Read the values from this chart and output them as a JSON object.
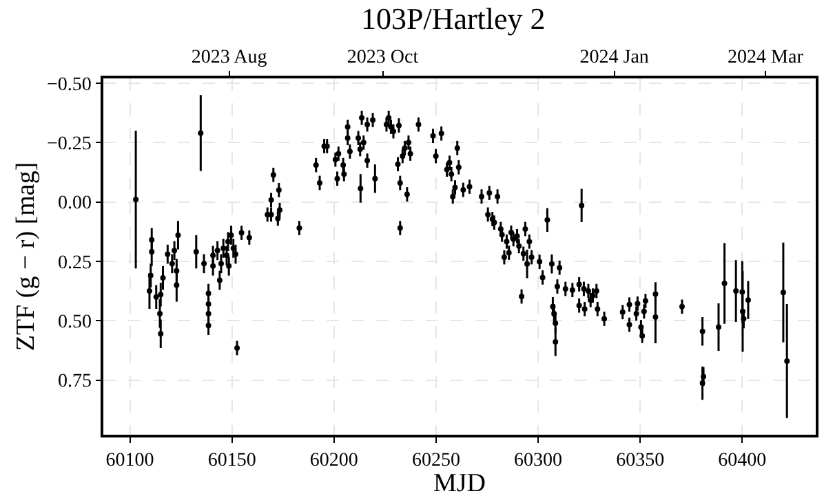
{
  "chart_data": {
    "type": "scatter",
    "title": "103P/Hartley 2",
    "xlabel": "MJD",
    "ylabel": "ZTF (g − r) [mag]",
    "xlim": [
      60087,
      60436
    ],
    "xticks": [
      60100,
      60150,
      60200,
      60250,
      60300,
      60350,
      60400
    ],
    "x2lim": [
      "2023-06-12",
      "2024-03-21"
    ],
    "x2ticks": [
      {
        "value": "2023-08",
        "label": "2023 Aug"
      },
      {
        "value": "2023-10",
        "label": "2023 Oct"
      },
      {
        "value": "2024-01",
        "label": "2024 Jan"
      },
      {
        "value": "2024-03",
        "label": "2024 Mar"
      }
    ],
    "ylim": [
      0.98,
      -0.52
    ],
    "yticks": [
      {
        "value": -0.5,
        "label": "−0.50"
      },
      {
        "value": -0.25,
        "label": "−0.25"
      },
      {
        "value": 0,
        "label": "0.00"
      },
      {
        "value": 0.25,
        "label": "0.25"
      },
      {
        "value": 0.5,
        "label": "0.50"
      },
      {
        "value": 0.75,
        "label": "0.75"
      }
    ],
    "grid": true,
    "marker": "circle",
    "series": [
      {
        "color": "#000000",
        "x": [
          60102.9,
          60109.6,
          60110.2,
          60110.7,
          60110.7,
          60112.9,
          60114.7,
          60115.1,
          60115.1,
          60116.2,
          60118.5,
          60120.7,
          60121.8,
          60122.9,
          60122.9,
          60123.6,
          60134.7,
          60132.5,
          60136.3,
          60138.5,
          60138.5,
          60138.5,
          60138.5,
          60140.7,
          60140.7,
          60142.9,
          60144.0,
          60144.7,
          60145.8,
          60147.4,
          60148.1,
          60148.5,
          60149.6,
          60150.7,
          60151.8,
          60152.5,
          60154.7,
          60158.5,
          60167.4,
          60169.2,
          60169.2,
          60170.3,
          60172.5,
          60173.0,
          60173.4,
          60183.0,
          60191.2,
          60193.0,
          60195.2,
          60196.6,
          60200.7,
          60202.2,
          60201.6,
          60204.5,
          60204.9,
          60206.7,
          60206.7,
          60207.8,
          60211.9,
          60212.8,
          60213.0,
          60213.6,
          60214.5,
          60216.3,
          60216.3,
          60219.0,
          60220.1,
          60225.7,
          60226.8,
          60227.9,
          60229.1,
          60231.3,
          60231.8,
          60232.4,
          60232.4,
          60233.6,
          60234.7,
          60235.8,
          60236.5,
          60237.4,
          60241.4,
          60248.5,
          60249.9,
          60252.6,
          60255.3,
          60256.6,
          60257.5,
          60258.2,
          60259.3,
          60260.4,
          60261.1,
          60263.3,
          60266.4,
          60272.3,
          60276.1,
          60275.4,
          60277.6,
          60280.1,
          60278.5,
          60281.7,
          60282.3,
          60283.4,
          60284.6,
          60285.7,
          60286.8,
          60287.9,
          60289.7,
          60290.6,
          60291.9,
          60292.8,
          60293.7,
          60294.6,
          60295.7,
          60296.8,
          60300.7,
          60302.2,
          60304.5,
          60306.7,
          60307.2,
          60307.8,
          60308.5,
          60308.5,
          60309.4,
          60310.5,
          60313.4,
          60316.8,
          60320.1,
          60321.3,
          60320.1,
          60322.4,
          60322.8,
          60324.6,
          60325.7,
          60326.8,
          60328.6,
          60329.1,
          60332.4,
          60341.4,
          60344.7,
          60344.7,
          60348.1,
          60348.7,
          60350.4,
          60351.0,
          60351.9,
          60352.6,
          60357.5,
          60357.5,
          60370.5,
          60380.5,
          60380.5,
          60381.0,
          60388.4,
          60391.3,
          60396.9,
          60400.0,
          60400.2,
          60400.7,
          60402.9,
          60420.1,
          60421.9
        ],
        "values": [
          -0.01,
          0.375,
          0.31,
          0.21,
          0.16,
          0.4,
          0.47,
          0.555,
          0.39,
          0.32,
          0.22,
          0.26,
          0.205,
          0.35,
          0.29,
          0.14,
          -0.29,
          0.21,
          0.26,
          0.385,
          0.43,
          0.47,
          0.52,
          0.225,
          0.27,
          0.205,
          0.33,
          0.26,
          0.195,
          0.225,
          0.167,
          0.27,
          0.14,
          0.195,
          0.22,
          0.615,
          0.13,
          0.15,
          0.053,
          -0.008,
          0.053,
          -0.114,
          0.07,
          -0.05,
          0.034,
          0.11,
          -0.155,
          -0.08,
          -0.235,
          -0.235,
          -0.178,
          -0.203,
          -0.098,
          -0.155,
          -0.117,
          -0.316,
          -0.269,
          -0.212,
          -0.269,
          -0.222,
          -0.057,
          -0.354,
          -0.25,
          -0.326,
          -0.174,
          -0.345,
          -0.098,
          -0.326,
          -0.354,
          -0.316,
          -0.297,
          -0.159,
          -0.322,
          -0.08,
          0.11,
          -0.193,
          -0.227,
          -0.032,
          -0.25,
          -0.203,
          -0.326,
          -0.278,
          -0.193,
          -0.288,
          -0.136,
          -0.165,
          -0.117,
          -0.023,
          -0.061,
          -0.227,
          -0.146,
          -0.051,
          -0.064,
          -0.023,
          -0.038,
          0.053,
          0.072,
          -0.023,
          0.087,
          0.114,
          0.138,
          0.233,
          0.167,
          0.214,
          0.129,
          0.157,
          0.144,
          0.186,
          0.398,
          0.218,
          0.114,
          0.261,
          0.167,
          0.233,
          0.252,
          0.318,
          0.076,
          0.261,
          0.441,
          0.47,
          0.511,
          0.589,
          0.356,
          0.277,
          0.366,
          0.371,
          0.347,
          0.015,
          0.436,
          0.366,
          0.451,
          0.375,
          0.413,
          0.394,
          0.375,
          0.451,
          0.492,
          0.464,
          0.432,
          0.517,
          0.47,
          0.428,
          0.527,
          0.564,
          0.461,
          0.417,
          0.388,
          0.485,
          0.441,
          0.545,
          0.763,
          0.735,
          0.527,
          0.343,
          0.375,
          0.379,
          0.461,
          0.492,
          0.413,
          0.381,
          0.67
        ],
        "errors": [
          0.29,
          0.075,
          0.05,
          0.06,
          0.05,
          0.05,
          0.06,
          0.06,
          0.05,
          0.05,
          0.04,
          0.04,
          0.04,
          0.07,
          0.05,
          0.06,
          0.16,
          0.07,
          0.04,
          0.04,
          0.04,
          0.04,
          0.04,
          0.04,
          0.04,
          0.04,
          0.04,
          0.04,
          0.04,
          0.04,
          0.04,
          0.04,
          0.04,
          0.04,
          0.04,
          0.03,
          0.03,
          0.03,
          0.03,
          0.03,
          0.03,
          0.03,
          0.03,
          0.03,
          0.03,
          0.03,
          0.03,
          0.03,
          0.03,
          0.03,
          0.03,
          0.03,
          0.03,
          0.03,
          0.03,
          0.03,
          0.03,
          0.03,
          0.03,
          0.03,
          0.06,
          0.03,
          0.03,
          0.03,
          0.03,
          0.03,
          0.06,
          0.03,
          0.03,
          0.03,
          0.03,
          0.03,
          0.03,
          0.03,
          0.03,
          0.03,
          0.03,
          0.03,
          0.03,
          0.03,
          0.03,
          0.03,
          0.03,
          0.03,
          0.03,
          0.03,
          0.03,
          0.03,
          0.03,
          0.03,
          0.03,
          0.03,
          0.03,
          0.03,
          0.03,
          0.03,
          0.03,
          0.03,
          0.03,
          0.03,
          0.03,
          0.03,
          0.03,
          0.03,
          0.03,
          0.03,
          0.03,
          0.03,
          0.03,
          0.03,
          0.03,
          0.06,
          0.03,
          0.03,
          0.03,
          0.03,
          0.05,
          0.04,
          0.04,
          0.04,
          0.04,
          0.06,
          0.03,
          0.03,
          0.03,
          0.03,
          0.03,
          0.07,
          0.03,
          0.03,
          0.03,
          0.03,
          0.03,
          0.03,
          0.03,
          0.03,
          0.03,
          0.03,
          0.03,
          0.03,
          0.03,
          0.03,
          0.03,
          0.03,
          0.03,
          0.03,
          0.05,
          0.11,
          0.03,
          0.06,
          0.07,
          0.04,
          0.1,
          0.17,
          0.13,
          0.13,
          0.17,
          0.04,
          0.08,
          0.21,
          0.24
        ]
      }
    ]
  }
}
